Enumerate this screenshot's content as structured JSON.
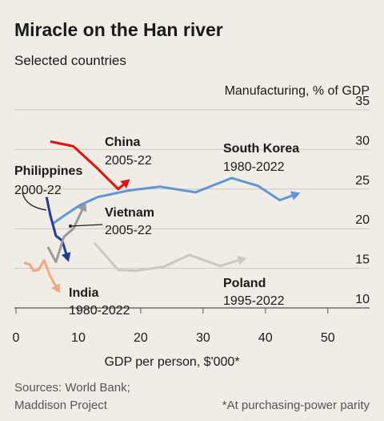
{
  "chart_data": {
    "type": "line",
    "title": "Miracle on the Han river",
    "subtitle": "Selected countries",
    "ylabel": "Manufacturing, % of GDP",
    "xlabel": "GDP per person, $'000*",
    "sources": [
      "Sources: World Bank;",
      "Maddison Project"
    ],
    "footnote": "*At purchasing-power parity",
    "xlim": [
      0,
      56.7
    ],
    "ylim": [
      10,
      35
    ],
    "xticks": [
      0,
      10,
      20,
      30,
      40,
      50
    ],
    "yticks": [
      10,
      15,
      20,
      25,
      30,
      35
    ],
    "grid": true,
    "series": [
      {
        "name": "China",
        "period": "2005-22",
        "color": "#e3120b",
        "x": [
          5.5,
          9.2,
          12.8,
          16.4,
          17.9
        ],
        "values": [
          31,
          30.4,
          27.8,
          25,
          26
        ]
      },
      {
        "name": "South Korea",
        "period": "1980-2022",
        "color": "#5e97d6",
        "x": [
          6.0,
          8.2,
          10.3,
          13.1,
          17.9,
          23.1,
          28.8,
          34.6,
          38.8,
          42.3,
          45.1
        ],
        "values": [
          20.7,
          21.9,
          23.0,
          24.0,
          24.8,
          25.3,
          24.6,
          26.4,
          25.4,
          23.6,
          24.4
        ]
      },
      {
        "name": "Philippines",
        "period": "2000-22",
        "color": "#1f3b9c",
        "x": [
          4.9,
          5.5,
          6.4,
          7.4,
          8.3
        ],
        "values": [
          24.0,
          21.7,
          19.1,
          18.5,
          16.2
        ]
      },
      {
        "name": "Vietnam",
        "period": "2005-22",
        "color": "#9a9a9a",
        "x": [
          5.1,
          6.4,
          7.7,
          9.2,
          11.0
        ],
        "values": [
          17.7,
          15.8,
          19.0,
          20.0,
          23.0
        ]
      },
      {
        "name": "India",
        "period": "1980-2022",
        "color": "#f4a582",
        "x": [
          1.3,
          2.2,
          2.8,
          3.6,
          4.5,
          5.5,
          6.8
        ],
        "values": [
          15.7,
          15.5,
          14.7,
          14.8,
          16.0,
          14.0,
          12.2
        ]
      },
      {
        "name": "Poland",
        "period": "1995-2022",
        "color": "#c8c8c4",
        "x": [
          12.6,
          16.4,
          19.2,
          23.7,
          27.8,
          32.7,
          36.5
        ],
        "values": [
          18.2,
          14.8,
          14.7,
          15.2,
          16.7,
          15.3,
          16.2
        ]
      }
    ]
  }
}
